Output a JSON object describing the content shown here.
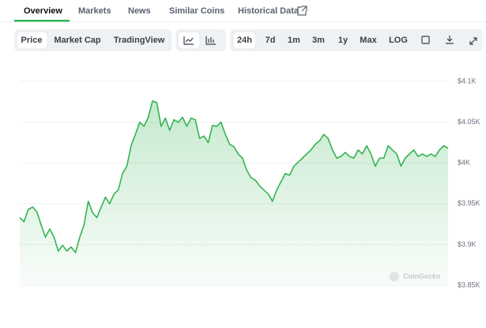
{
  "tabs": [
    "Overview",
    "Markets",
    "News",
    "Similar Coins",
    "Historical Data"
  ],
  "price_types": [
    "Price",
    "Market Cap",
    "TradingView"
  ],
  "ranges": [
    "24h",
    "7d",
    "1m",
    "3m",
    "1y",
    "Max",
    "LOG"
  ],
  "chart_data": {
    "type": "line",
    "color": "#34b351",
    "watermark": "CoinGecko",
    "grid": true,
    "ylim": [
      3850,
      4100
    ],
    "yticks": [
      {
        "value": 3850,
        "label": "$3.85K"
      },
      {
        "value": 3900,
        "label": "$3.9K"
      },
      {
        "value": 3950,
        "label": "$3.95K"
      },
      {
        "value": 4000,
        "label": "$4K"
      },
      {
        "value": 4050,
        "label": "$4.05K"
      },
      {
        "value": 4100,
        "label": "$4.1K"
      }
    ],
    "values": [
      3933,
      3928,
      3943,
      3946,
      3940,
      3924,
      3909,
      3919,
      3909,
      3892,
      3899,
      3892,
      3897,
      3890,
      3909,
      3924,
      3953,
      3939,
      3933,
      3946,
      3958,
      3950,
      3962,
      3967,
      3987,
      3996,
      4021,
      4035,
      4050,
      4045,
      4056,
      4076,
      4074,
      4045,
      4055,
      4040,
      4053,
      4050,
      4056,
      4045,
      4055,
      4053,
      4030,
      4033,
      4025,
      4046,
      4045,
      4050,
      4035,
      4023,
      4020,
      4011,
      4006,
      3991,
      3982,
      3979,
      3972,
      3967,
      3962,
      3953,
      3967,
      3977,
      3987,
      3985,
      3996,
      4001,
      4006,
      4011,
      4016,
      4023,
      4027,
      4035,
      4030,
      4016,
      4006,
      4008,
      4013,
      4008,
      4006,
      4016,
      4011,
      4021,
      4011,
      3996,
      4006,
      4006,
      4021,
      4016,
      4011,
      3996,
      4006,
      4011,
      4016,
      4008,
      4011,
      4008,
      4011,
      4008,
      4016,
      4021,
      4018
    ]
  }
}
